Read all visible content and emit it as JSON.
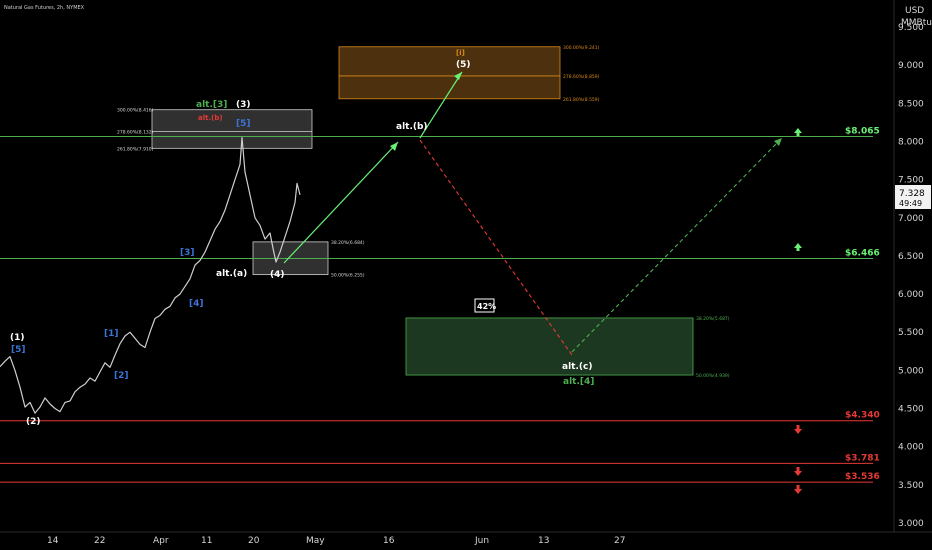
{
  "header": {
    "symbol": "Natural Gas Futures, 2h, NYMEX",
    "currency": "USD",
    "unit": "MMBtu"
  },
  "price_tag": {
    "price": "7.328",
    "countdown": "49:49"
  },
  "colors": {
    "background": "#000000",
    "price": "#cfcfcf",
    "green": "#4caf50",
    "bright_green": "#69f075",
    "red": "#e53935",
    "blue": "#3b73d6",
    "orange": "#d98a1a",
    "white": "#ffffff",
    "target_box": "#1f3b22"
  },
  "chart_data": {
    "type": "line",
    "ylim": [
      3.0,
      9.5
    ],
    "y_ticks": [
      "3.000",
      "3.500",
      "4.000",
      "4.500",
      "5.000",
      "5.500",
      "6.000",
      "6.500",
      "7.000",
      "7.500",
      "8.000",
      "8.500",
      "9.000",
      "9.500"
    ],
    "x_labels": [
      "14",
      "22",
      "Apr",
      "11",
      "20",
      "May",
      "16",
      "Jun",
      "13",
      "27"
    ],
    "series": [
      {
        "points": [
          [
            0,
            5.05
          ],
          [
            5,
            5.12
          ],
          [
            10,
            5.18
          ],
          [
            15,
            5.0
          ],
          [
            20,
            4.78
          ],
          [
            25,
            4.52
          ],
          [
            30,
            4.58
          ],
          [
            35,
            4.44
          ],
          [
            40,
            4.52
          ],
          [
            45,
            4.64
          ],
          [
            50,
            4.56
          ],
          [
            55,
            4.5
          ],
          [
            60,
            4.46
          ],
          [
            65,
            4.58
          ],
          [
            70,
            4.6
          ],
          [
            75,
            4.72
          ],
          [
            80,
            4.78
          ],
          [
            85,
            4.82
          ],
          [
            90,
            4.9
          ],
          [
            95,
            4.86
          ],
          [
            100,
            4.98
          ],
          [
            105,
            5.1
          ],
          [
            110,
            5.04
          ],
          [
            115,
            5.2
          ],
          [
            120,
            5.35
          ],
          [
            125,
            5.45
          ],
          [
            130,
            5.5
          ],
          [
            135,
            5.42
          ],
          [
            140,
            5.34
          ],
          [
            145,
            5.3
          ],
          [
            150,
            5.5
          ],
          [
            155,
            5.68
          ],
          [
            160,
            5.72
          ],
          [
            165,
            5.8
          ],
          [
            170,
            5.84
          ],
          [
            175,
            5.95
          ],
          [
            180,
            6.0
          ],
          [
            185,
            6.1
          ],
          [
            190,
            6.2
          ],
          [
            195,
            6.38
          ],
          [
            200,
            6.44
          ],
          [
            205,
            6.55
          ],
          [
            210,
            6.7
          ],
          [
            215,
            6.85
          ],
          [
            220,
            6.95
          ],
          [
            225,
            7.1
          ],
          [
            230,
            7.3
          ],
          [
            235,
            7.5
          ],
          [
            240,
            7.7
          ],
          [
            242,
            8.05
          ],
          [
            245,
            7.6
          ],
          [
            250,
            7.3
          ],
          [
            255,
            7.0
          ],
          [
            260,
            6.9
          ],
          [
            265,
            6.72
          ],
          [
            270,
            6.8
          ],
          [
            273,
            6.6
          ],
          [
            276,
            6.42
          ],
          [
            280,
            6.55
          ],
          [
            285,
            6.75
          ],
          [
            290,
            6.95
          ],
          [
            295,
            7.2
          ],
          [
            297,
            7.45
          ],
          [
            300,
            7.3
          ]
        ]
      }
    ],
    "levels": [
      {
        "label": "$8.065",
        "value": 8.065,
        "color": "green"
      },
      {
        "label": "$6.466",
        "value": 6.466,
        "color": "green"
      },
      {
        "label": "$4.340",
        "value": 4.34,
        "color": "red"
      },
      {
        "label": "$3.781",
        "value": 3.781,
        "color": "red"
      },
      {
        "label": "$3.536",
        "value": 3.536,
        "color": "red"
      }
    ],
    "fib_boxes": [
      {
        "label_top": "300.00%(8.416)",
        "label_mid": "278.60%(8.132)",
        "label_bot": "261.80%(7.910)",
        "top": 8.416,
        "mid": 8.132,
        "bottom": 7.91,
        "style": "gray",
        "labels_side": "left"
      },
      {
        "label_top": "38.20%(6.684)",
        "label_bot": "50.00%(6.255)",
        "top": 6.684,
        "bottom": 6.255,
        "style": "gray",
        "labels_side": "right"
      },
      {
        "label_top": "300.00%(9.241)",
        "label_mid": "278.60%(8.859)",
        "label_bot": "261.80%(8.559)",
        "top": 9.241,
        "mid": 8.859,
        "bottom": 8.559,
        "style": "orange",
        "labels_side": "right"
      },
      {
        "label_top": "38.20%(5.687)",
        "label_bot": "50.00%(4.939)",
        "top": 5.687,
        "bottom": 4.939,
        "style": "green",
        "labels_side": "right"
      }
    ],
    "wave_labels": [
      {
        "text": "(1)",
        "color": "white"
      },
      {
        "text": "[5]",
        "color": "blue"
      },
      {
        "text": "(2)",
        "color": "white"
      },
      {
        "text": "[1]",
        "color": "blue"
      },
      {
        "text": "[2]",
        "color": "blue"
      },
      {
        "text": "[3]",
        "color": "blue"
      },
      {
        "text": "[4]",
        "color": "blue"
      },
      {
        "text": "alt.(a)",
        "color": "white"
      },
      {
        "text": "alt.[3]",
        "color": "green"
      },
      {
        "text": "(3)",
        "color": "white"
      },
      {
        "text": "alt.(b)",
        "color": "red"
      },
      {
        "text": "[5]",
        "color": "blue"
      },
      {
        "text": "(4)",
        "color": "white"
      },
      {
        "text": "alt.(b)",
        "color": "white"
      },
      {
        "text": "[i]",
        "color": "orange"
      },
      {
        "text": "(5)",
        "color": "white"
      },
      {
        "text": "alt.(c)",
        "color": "white"
      },
      {
        "text": "alt.[4]",
        "color": "green"
      }
    ],
    "probability_badge": "42%"
  }
}
